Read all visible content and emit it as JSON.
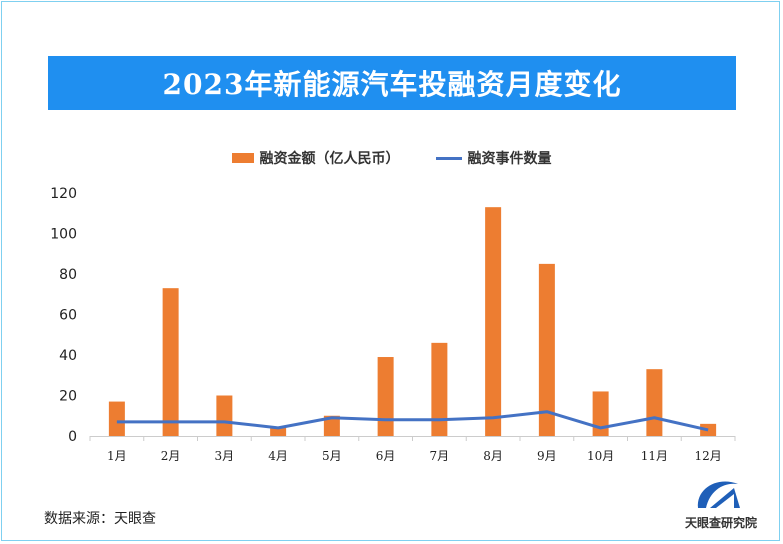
{
  "title": "2023年新能源汽车投融资月度变化",
  "source": "数据来源：天眼查",
  "logo_text": "天眼查研究院",
  "colors": {
    "bar": "#ed7d31",
    "line": "#4472c4",
    "banner": "#1f8ff0"
  },
  "chart_data": {
    "type": "bar",
    "title": "2023年新能源汽车投融资月度变化",
    "categories": [
      "1月",
      "2月",
      "3月",
      "4月",
      "5月",
      "6月",
      "7月",
      "8月",
      "9月",
      "10月",
      "11月",
      "12月"
    ],
    "series": [
      {
        "name": "融资金额（亿人民币）",
        "type": "bar",
        "values": [
          17,
          73,
          20,
          4,
          10,
          39,
          46,
          113,
          85,
          22,
          33,
          6
        ]
      },
      {
        "name": "融资事件数量",
        "type": "line",
        "values": [
          7,
          7,
          7,
          4,
          9,
          8,
          8,
          9,
          12,
          4,
          9,
          3
        ]
      }
    ],
    "ylim": [
      0,
      120
    ],
    "yticks": [
      0,
      20,
      40,
      60,
      80,
      100,
      120
    ],
    "xlabel": "",
    "ylabel": "",
    "grid": false,
    "legend": "top-center"
  }
}
